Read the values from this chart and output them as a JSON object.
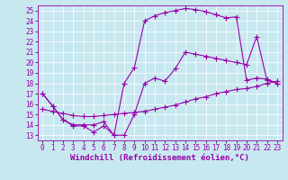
{
  "xlabel": "Windchill (Refroidissement éolien,°C)",
  "xlim": [
    -0.5,
    23.5
  ],
  "ylim": [
    12.5,
    25.5
  ],
  "yticks": [
    13,
    14,
    15,
    16,
    17,
    18,
    19,
    20,
    21,
    22,
    23,
    24,
    25
  ],
  "xticks": [
    0,
    1,
    2,
    3,
    4,
    5,
    6,
    7,
    8,
    9,
    10,
    11,
    12,
    13,
    14,
    15,
    16,
    17,
    18,
    19,
    20,
    21,
    22,
    23
  ],
  "bg_color": "#c8e8f0",
  "line_color": "#9900aa",
  "line1_x": [
    0,
    1,
    2,
    3,
    4,
    5,
    6,
    7,
    8,
    9,
    10,
    11,
    12,
    13,
    14,
    15,
    16,
    17,
    18,
    19,
    20,
    21,
    22,
    23
  ],
  "line1_y": [
    17.0,
    15.8,
    14.5,
    13.9,
    13.9,
    13.3,
    13.9,
    13.0,
    13.0,
    15.0,
    18.0,
    18.5,
    18.2,
    19.4,
    21.0,
    20.8,
    20.6,
    20.4,
    20.2,
    20.0,
    19.8,
    22.5,
    18.3,
    18.0
  ],
  "line2_x": [
    0,
    1,
    2,
    3,
    4,
    5,
    6,
    7,
    8,
    9,
    10,
    11,
    12,
    13,
    14,
    15,
    16,
    17,
    18,
    19,
    20,
    21,
    22,
    23
  ],
  "line2_y": [
    17.0,
    15.8,
    14.5,
    14.0,
    14.0,
    14.0,
    14.3,
    13.0,
    18.0,
    19.5,
    24.0,
    24.5,
    24.8,
    25.0,
    25.2,
    25.1,
    24.9,
    24.6,
    24.3,
    24.4,
    18.3,
    18.5,
    18.4,
    18.0
  ],
  "line3_x": [
    0,
    1,
    2,
    3,
    4,
    5,
    6,
    7,
    8,
    9,
    10,
    11,
    12,
    13,
    14,
    15,
    16,
    17,
    18,
    19,
    20,
    21,
    22,
    23
  ],
  "line3_y": [
    15.5,
    15.3,
    15.1,
    14.9,
    14.8,
    14.8,
    14.9,
    15.0,
    15.1,
    15.2,
    15.3,
    15.5,
    15.7,
    15.9,
    16.2,
    16.5,
    16.7,
    17.0,
    17.2,
    17.4,
    17.5,
    17.7,
    18.0,
    18.2
  ],
  "marker": "+",
  "markersize": 4,
  "markeredgewidth": 0.8,
  "linewidth": 0.8,
  "tick_fontsize": 5.5,
  "xlabel_fontsize": 6.5
}
